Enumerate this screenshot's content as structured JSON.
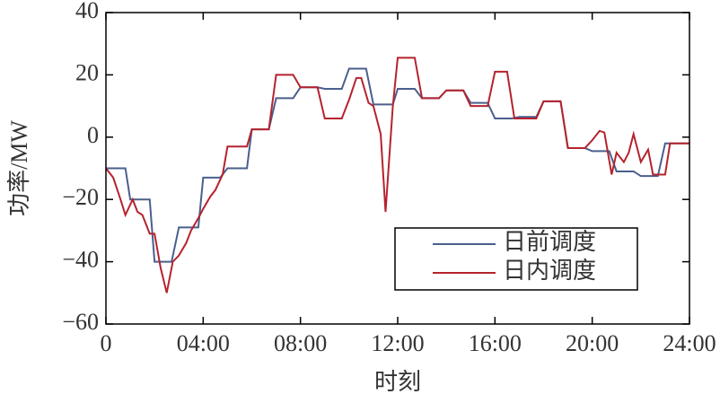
{
  "chart_data": {
    "type": "line",
    "xlabel": "时刻",
    "ylabel": "功率/MW",
    "xlim": [
      0,
      24
    ],
    "xticks": [
      {
        "value": 0,
        "label": "0"
      },
      {
        "value": 4,
        "label": "04:00"
      },
      {
        "value": 8,
        "label": "08:00"
      },
      {
        "value": 12,
        "label": "12:00"
      },
      {
        "value": 16,
        "label": "16:00"
      },
      {
        "value": 20,
        "label": "20:00"
      },
      {
        "value": 24,
        "label": "24:00"
      }
    ],
    "ylim": [
      -60,
      40
    ],
    "yticks": [
      {
        "value": -60,
        "label": "−60"
      },
      {
        "value": -40,
        "label": "−40"
      },
      {
        "value": -20,
        "label": "−20"
      },
      0,
      20,
      40
    ],
    "legend": "lower right",
    "series": [
      {
        "name": "日前调度",
        "color": "#4a5f8e",
        "x": [
          0,
          0.8,
          1.0,
          1.8,
          2.0,
          2.7,
          3.0,
          3.8,
          4.0,
          4.7,
          5.0,
          5.8,
          6.0,
          6.7,
          7.0,
          7.7,
          8.0,
          8.7,
          9.0,
          9.7,
          10.0,
          10.7,
          11.0,
          11.8,
          12.0,
          12.7,
          13.0,
          13.7,
          14.0,
          14.7,
          15.0,
          15.7,
          16.0,
          16.7,
          17.0,
          17.7,
          18.0,
          18.7,
          19.0,
          19.7,
          20.0,
          20.7,
          21.0,
          21.7,
          22.0,
          22.7,
          23.0,
          24.0
        ],
        "values": [
          -10,
          -10,
          -20,
          -20,
          -40,
          -40,
          -29,
          -29,
          -13,
          -13,
          -10,
          -10,
          2.5,
          2.5,
          12.5,
          12.5,
          16,
          16,
          15.5,
          15.5,
          22,
          22,
          10.5,
          10.5,
          15.5,
          15.5,
          12.5,
          12.5,
          15,
          15,
          11,
          11,
          6,
          6,
          6.5,
          6.5,
          11.5,
          11.5,
          -3.5,
          -3.5,
          -4.5,
          -4.5,
          -11,
          -11,
          -12.5,
          -12.5,
          -2,
          -2
        ]
      },
      {
        "name": "日内调度",
        "color": "#b5232e",
        "x": [
          0,
          0.3,
          0.6,
          0.8,
          1.1,
          1.3,
          1.5,
          1.8,
          2.0,
          2.25,
          2.5,
          2.75,
          3.0,
          3.3,
          3.5,
          3.8,
          4.0,
          4.3,
          4.5,
          4.8,
          5.0,
          5.8,
          6.0,
          6.7,
          7.0,
          7.7,
          8.0,
          8.7,
          9.0,
          9.7,
          10.0,
          10.3,
          10.5,
          10.8,
          11.0,
          11.3,
          11.5,
          11.8,
          12.0,
          12.7,
          13.0,
          13.7,
          14.0,
          14.7,
          15.0,
          15.7,
          16.0,
          16.5,
          16.8,
          17.7,
          18.0,
          18.7,
          19.0,
          19.7,
          20.0,
          20.3,
          20.5,
          20.8,
          21.0,
          21.3,
          21.5,
          21.7,
          22.0,
          22.3,
          22.5,
          23.0,
          23.2,
          24.0
        ],
        "values": [
          -10,
          -13,
          -20,
          -25,
          -20,
          -24,
          -25,
          -31,
          -31,
          -42,
          -50,
          -40,
          -38,
          -34,
          -30,
          -26,
          -23,
          -19,
          -17,
          -12,
          -3,
          -3,
          2.5,
          2.5,
          20,
          20,
          16,
          16,
          6,
          6,
          12,
          19,
          19,
          11,
          10,
          1,
          -24,
          10,
          25.5,
          25.5,
          12.5,
          12.5,
          15,
          15,
          10,
          10,
          21,
          21,
          6,
          6,
          11.5,
          11.5,
          -3.5,
          -3.5,
          -1,
          2,
          1.5,
          -12,
          -5,
          -8,
          -5,
          1,
          -8,
          -4,
          -12,
          -12,
          -2,
          -2
        ]
      }
    ]
  }
}
